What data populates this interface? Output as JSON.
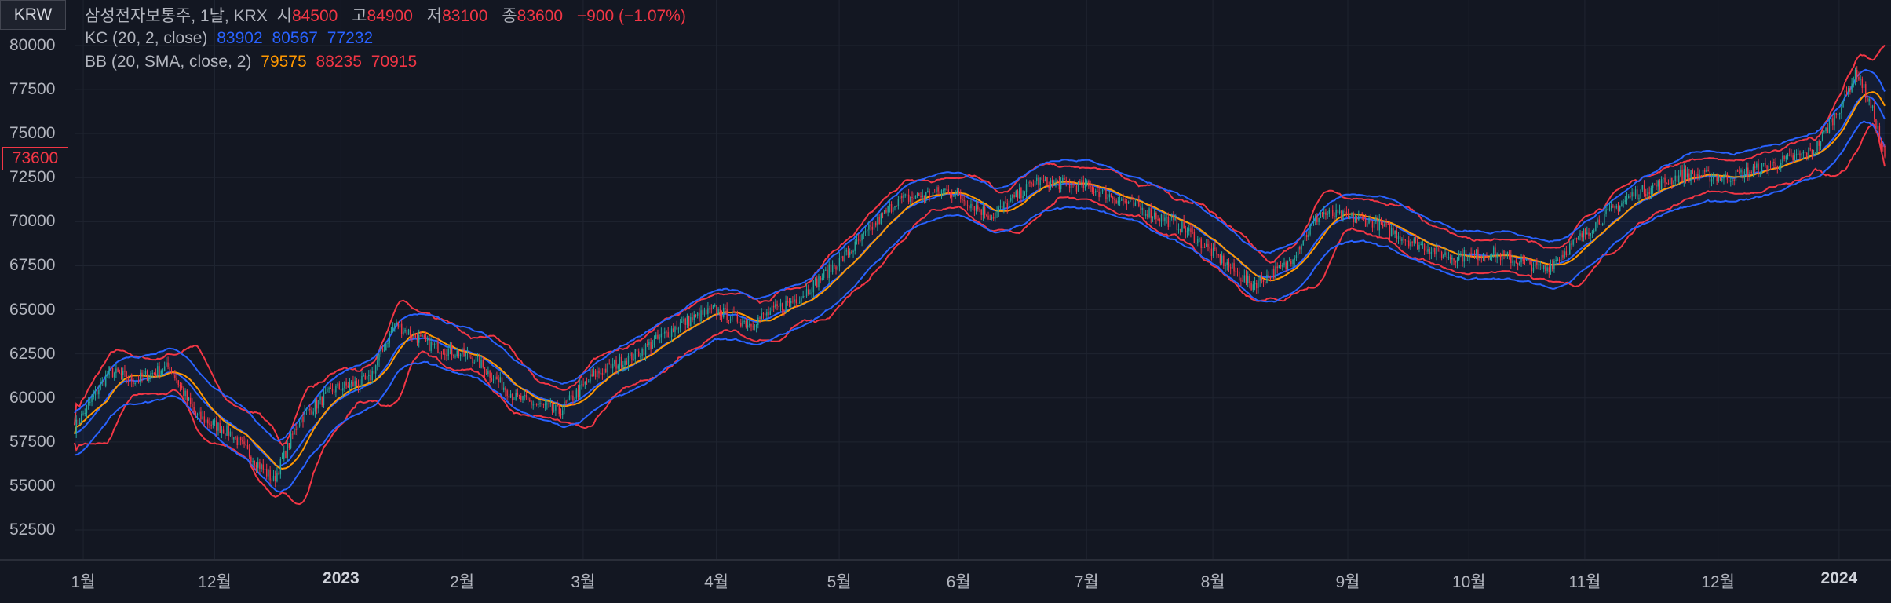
{
  "currency": "KRW",
  "current_price": "73600",
  "legend": {
    "symbol": "삼성전자보통주, 1날, KRX",
    "open_label": "시",
    "open": "84500",
    "high_label": "고",
    "high": "84900",
    "low_label": "저",
    "low": "83100",
    "close_label": "종",
    "close": "83600",
    "change": "−900 (−1.07%)",
    "kc_label": "KC (20, 2, close)",
    "kc_upper": "83902",
    "kc_basis": "80567",
    "kc_lower": "77232",
    "bb_label": "BB (20, SMA, close, 2)",
    "bb_basis": "79575",
    "bb_upper": "88235",
    "bb_lower": "70915"
  },
  "colors": {
    "up": "#26a69a",
    "down": "#f23645",
    "kc": "#2962ff",
    "bb_basis": "#ff9800",
    "bb_band": "#f23645"
  },
  "chart_data": {
    "type": "candlestick",
    "ylim": [
      52500,
      80000
    ],
    "y_ticks": [
      80000,
      77500,
      75000,
      72500,
      70000,
      67500,
      65000,
      62500,
      60000,
      57500,
      55000,
      52500
    ],
    "x_ticks": [
      {
        "label": "1월",
        "pos": 0.005,
        "bold": false
      },
      {
        "label": "12월",
        "pos": 0.081,
        "bold": false
      },
      {
        "label": "2023",
        "pos": 0.154,
        "bold": true
      },
      {
        "label": "2월",
        "pos": 0.224,
        "bold": false
      },
      {
        "label": "3월",
        "pos": 0.294,
        "bold": false
      },
      {
        "label": "4월",
        "pos": 0.371,
        "bold": false
      },
      {
        "label": "5월",
        "pos": 0.442,
        "bold": false
      },
      {
        "label": "6월",
        "pos": 0.511,
        "bold": false
      },
      {
        "label": "7월",
        "pos": 0.585,
        "bold": false
      },
      {
        "label": "8월",
        "pos": 0.658,
        "bold": false
      },
      {
        "label": "9월",
        "pos": 0.736,
        "bold": false
      },
      {
        "label": "10월",
        "pos": 0.806,
        "bold": false
      },
      {
        "label": "11월",
        "pos": 0.873,
        "bold": false
      },
      {
        "label": "12월",
        "pos": 0.95,
        "bold": false
      },
      {
        "label": "2024",
        "pos": 1.02,
        "bold": true
      }
    ],
    "close_keypoints": [
      [
        0,
        58300
      ],
      [
        20,
        61500
      ],
      [
        35,
        61000
      ],
      [
        55,
        61800
      ],
      [
        70,
        59000
      ],
      [
        90,
        58000
      ],
      [
        115,
        55300
      ],
      [
        130,
        58800
      ],
      [
        150,
        60500
      ],
      [
        170,
        61000
      ],
      [
        185,
        64200
      ],
      [
        205,
        63000
      ],
      [
        230,
        62300
      ],
      [
        255,
        60000
      ],
      [
        280,
        59200
      ],
      [
        300,
        61300
      ],
      [
        325,
        62500
      ],
      [
        350,
        64200
      ],
      [
        370,
        65000
      ],
      [
        390,
        64200
      ],
      [
        420,
        65800
      ],
      [
        450,
        68500
      ],
      [
        475,
        71200
      ],
      [
        505,
        71800
      ],
      [
        530,
        70300
      ],
      [
        555,
        72300
      ],
      [
        585,
        72000
      ],
      [
        610,
        71000
      ],
      [
        640,
        69700
      ],
      [
        680,
        66400
      ],
      [
        700,
        67500
      ],
      [
        720,
        70500
      ],
      [
        750,
        70000
      ],
      [
        770,
        69000
      ],
      [
        795,
        68000
      ],
      [
        820,
        68200
      ],
      [
        850,
        67300
      ],
      [
        880,
        70000
      ],
      [
        900,
        71500
      ],
      [
        930,
        72700
      ],
      [
        955,
        72500
      ],
      [
        980,
        73200
      ],
      [
        1005,
        74000
      ],
      [
        1020,
        76500
      ],
      [
        1030,
        78500
      ],
      [
        1040,
        76000
      ],
      [
        1046,
        73600
      ]
    ],
    "candle_count": 1047
  }
}
